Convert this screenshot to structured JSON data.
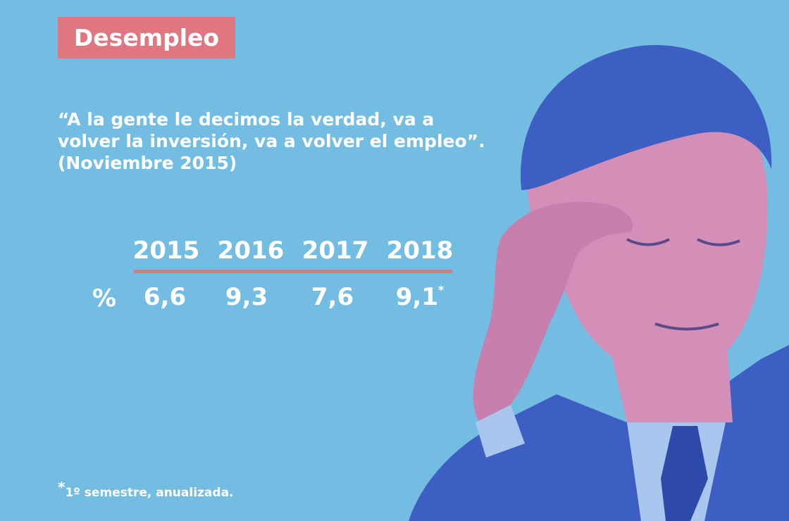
{
  "colors": {
    "background": "#74bde2",
    "accent": "#e07680",
    "text": "#ffffff",
    "photo_blue": "#3d5fc4",
    "photo_pink": "#d48fb8"
  },
  "header": {
    "title": "Desempleo"
  },
  "quote": {
    "line1": "“A la gente le decimos la verdad, va a",
    "line2": "volver la inversión, va a volver el empleo”.",
    "line3": "(Noviembre 2015)"
  },
  "table": {
    "row_label": "%",
    "years": [
      "2015",
      "2016",
      "2017",
      "2018"
    ],
    "values": [
      "6,6",
      "9,3",
      "7,6",
      "9,1"
    ],
    "last_value_marker": "*"
  },
  "footnote": {
    "marker": "*",
    "text": "1º semestre, anualizada."
  },
  "photo": {
    "subject": "man-with-hand-on-forehead"
  }
}
